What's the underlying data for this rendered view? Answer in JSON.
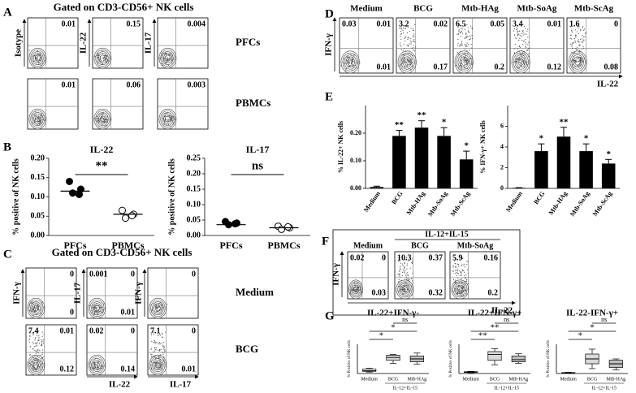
{
  "panels": {
    "A": {
      "letter": "A",
      "title": "Gated on CD3-CD56+ NK cells",
      "y_axis_labels": [
        "Isotype",
        "IL-22",
        "IL-17"
      ],
      "rows": [
        {
          "label": "PFCs",
          "plots": [
            {
              "tr": 0.01
            },
            {
              "tr": 0.15
            },
            {
              "tr": 0.004
            }
          ]
        },
        {
          "label": "PBMCs",
          "plots": [
            {
              "tr": 0.01
            },
            {
              "tr": 0.06
            },
            {
              "tr": 0.003
            }
          ]
        }
      ]
    },
    "B": {
      "letter": "B",
      "charts": [
        {
          "type": "dot",
          "title": "IL-22",
          "y_label": "% positive of NK cells",
          "categories": [
            "PFCs",
            "PBMCs"
          ],
          "points": [
            [
              0.14,
              0.12,
              0.11,
              0.1
            ],
            [
              0.065,
              0.055,
              0.045,
              0.045
            ]
          ],
          "means": [
            0.115,
            0.055
          ],
          "fills": [
            "#000000",
            "#ffffff"
          ],
          "significance": "**",
          "ylim": [
            0,
            0.2
          ],
          "yticks": [
            {
              "value": 0,
              "label": "0.00"
            },
            {
              "value": 0.05,
              "label": "0.05"
            },
            {
              "value": 0.1,
              "label": "0.10"
            },
            {
              "value": 0.15,
              "label": "0.15"
            },
            {
              "value": 0.2,
              "label": "0.20"
            }
          ]
        },
        {
          "type": "dot",
          "title": "IL-17",
          "y_label": "% positive of NK cells",
          "categories": [
            "PFCs",
            "PBMCs"
          ],
          "points": [
            [
              0.045,
              0.04,
              0.035,
              0.03
            ],
            [
              0.03,
              0.025,
              0.02,
              0.02
            ]
          ],
          "means": [
            0.035,
            0.025
          ],
          "fills": [
            "#000000",
            "#ffffff"
          ],
          "significance": "ns",
          "ylim": [
            0,
            0.25
          ],
          "yticks": [
            {
              "value": 0,
              "label": "0.00"
            },
            {
              "value": 0.05,
              "label": "0.05"
            },
            {
              "value": 0.1,
              "label": "0.10"
            },
            {
              "value": 0.15,
              "label": "0.15"
            },
            {
              "value": 0.2,
              "label": "0.20"
            },
            {
              "value": 0.25,
              "label": "0.25"
            }
          ]
        }
      ]
    },
    "C": {
      "letter": "C",
      "title": "Gated on CD3-CD56+ NK cells",
      "y_axis_labels": [
        "IFN-γ",
        "IL-17",
        "IFN-γ"
      ],
      "x_axis_labels": [
        null,
        "IL-22",
        "IL-17"
      ],
      "rows": [
        {
          "label": "Medium",
          "plots": [
            {
              "tr": 0,
              "br": 0
            },
            {
              "tl": 0.001,
              "tr": 0,
              "br": 0.01
            },
            {
              "tr": 0
            }
          ]
        },
        {
          "label": "BCG",
          "plots": [
            {
              "tl": 7.4,
              "tr": 0.01,
              "br": 0.12
            },
            {
              "tl": 0.02,
              "tr": 0,
              "br": 0.14
            },
            {
              "tl": 7.1,
              "tr": 0,
              "br": 0.01
            }
          ]
        }
      ]
    },
    "D": {
      "letter": "D",
      "y_axis_label": "IFN-γ",
      "x_axis_label": "IL-22",
      "plots": [
        {
          "title": "Medium",
          "tl": 0.03,
          "tr": 0.01,
          "br": 0.01
        },
        {
          "title": "BCG",
          "tl": 3.2,
          "tr": 0.02,
          "br": 0.17
        },
        {
          "title": "Mtb-HAg",
          "tl": 6.5,
          "tr": 0.05,
          "br": 0.2
        },
        {
          "title": "Mtb-SoAg",
          "tl": 3.4,
          "tr": 0.01,
          "br": 0.12
        },
        {
          "title": "Mtb-ScAg",
          "tl": 1.6,
          "tr": 0,
          "br": 0.08
        }
      ]
    },
    "E": {
      "letter": "E",
      "charts": [
        {
          "type": "bar",
          "y_label": "% IL-22+ NK cells",
          "categories": [
            "Medium",
            "BCG",
            "Mtb-HAg",
            "Mtb-SoAg",
            "Mtb-ScAg"
          ],
          "values": [
            0.005,
            0.19,
            0.22,
            0.19,
            0.105
          ],
          "errors": [
            0.003,
            0.02,
            0.025,
            0.03,
            0.03
          ],
          "significance": [
            null,
            "**",
            "**",
            "*",
            "*"
          ],
          "color": "#000000",
          "ylim": [
            0,
            0.3
          ],
          "yticks": [
            {
              "value": 0,
              "label": "0.00"
            },
            {
              "value": 0.1,
              "label": "0.10"
            },
            {
              "value": 0.2,
              "label": "0.20"
            }
          ]
        },
        {
          "type": "bar",
          "y_label": "% IFN-γ+ NK cells",
          "categories": [
            "Medium",
            "BCG",
            "Mtb-HAg",
            "Mtb-SoAg",
            "Mtb-ScAg"
          ],
          "values": [
            0.05,
            3.6,
            5.0,
            3.6,
            2.4
          ],
          "errors": [
            0.02,
            0.7,
            0.9,
            0.7,
            0.4
          ],
          "significance": [
            null,
            "*",
            "**",
            "*",
            "*"
          ],
          "color": "#000000",
          "ylim": [
            0,
            8
          ],
          "yticks": [
            0,
            2,
            4,
            6
          ]
        }
      ]
    },
    "F": {
      "letter": "F",
      "group_label": "IL-12+IL-15",
      "y_axis_label": "IFN-γ",
      "x_axis_label": "IL-22",
      "plots": [
        {
          "title": "Medium",
          "tl": 0.02,
          "tr": 0,
          "br": 0.03
        },
        {
          "title": "BCG",
          "tl": 10.3,
          "tr": 0.37,
          "br": 0.32
        },
        {
          "title": "Mtb-SoAg",
          "tl": 5.9,
          "tr": 0.16,
          "br": 0.2
        }
      ]
    },
    "G": {
      "letter": "G",
      "group_label": "IL-12+IL-15",
      "charts": [
        {
          "type": "box",
          "title": "IL-22+IFN-γ-",
          "y_label": "% Positive of NK cells",
          "categories": [
            "Medium",
            "BCG",
            "Mtb-HAg"
          ],
          "boxes": [
            [
              0.02,
              0.03,
              0.04,
              0.06,
              0.07
            ],
            [
              0.14,
              0.18,
              0.22,
              0.25,
              0.26
            ],
            [
              0.13,
              0.16,
              0.2,
              0.24,
              0.28
            ]
          ],
          "fills": [
            "#ffffff",
            "#d9d9d9",
            "#bfbfbf"
          ],
          "significance": [
            "*",
            "*",
            "ns"
          ],
          "ylim": [
            0,
            0.4
          ]
        },
        {
          "type": "box",
          "title": "IL-22+IFN-γ+",
          "y_label": "% Positive of NK cells",
          "categories": [
            "Medium",
            "BCG",
            "Mtb-HAg"
          ],
          "boxes": [
            [
              0.01,
              0.015,
              0.02,
              0.025,
              0.03
            ],
            [
              0.12,
              0.18,
              0.26,
              0.3,
              0.34
            ],
            [
              0.14,
              0.16,
              0.19,
              0.24,
              0.27
            ]
          ],
          "fills": [
            "#ffffff",
            "#d9d9d9",
            "#bfbfbf"
          ],
          "significance": [
            "**",
            "**",
            "ns"
          ],
          "ylim": [
            0,
            0.4
          ]
        },
        {
          "type": "box",
          "title": "IL-22-IFN-γ+",
          "y_label": "% Positive of NK cells",
          "categories": [
            "Medium",
            "BCG",
            "Mtb-HAg"
          ],
          "boxes": [
            [
              0.1,
              0.2,
              0.3,
              0.4,
              0.5
            ],
            [
              2,
              4,
              6,
              8,
              10
            ],
            [
              1.5,
              2.5,
              4,
              5.5,
              6
            ]
          ],
          "fills": [
            "#ffffff",
            "#d9d9d9",
            "#bfbfbf"
          ],
          "significance": [
            "*",
            "*",
            "ns"
          ],
          "ylim": [
            0,
            12
          ]
        }
      ]
    }
  }
}
